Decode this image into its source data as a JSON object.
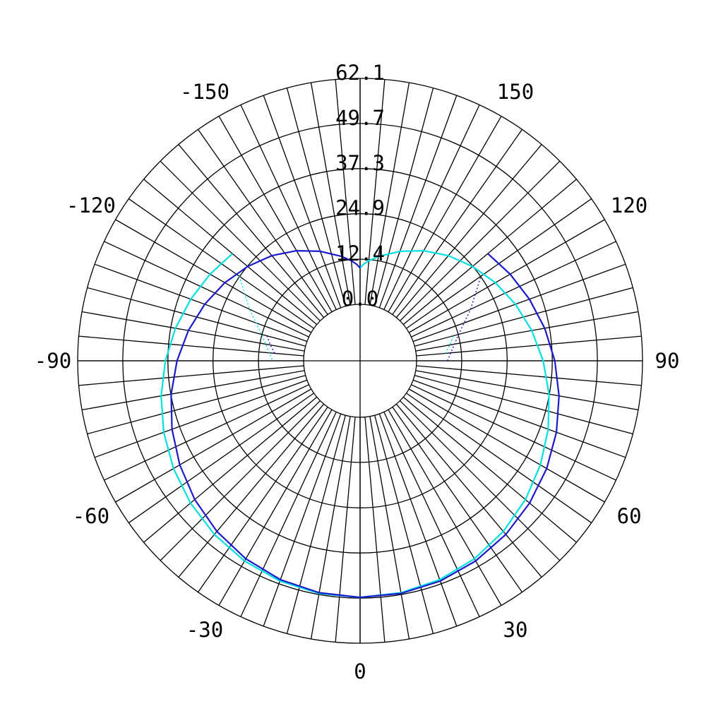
{
  "chart_data": {
    "type": "polar",
    "title": "",
    "radial_tick_labels": [
      "0.0",
      "12.4",
      "24.9",
      "37.3",
      "49.7",
      "62.1"
    ],
    "radial_range": [
      0,
      62.1
    ],
    "radial_offset": 0,
    "angle_tick_labels": [
      "0",
      "30",
      "60",
      "90",
      "120",
      "150",
      "-150",
      "-120",
      "-90",
      "-60",
      "-30"
    ],
    "angle_tick_values": [
      0,
      30,
      60,
      90,
      120,
      150,
      -150,
      -120,
      -90,
      -60,
      -30
    ],
    "angle_zero": "bottom",
    "angle_direction": "counterclockwise-to-right",
    "spoke_step_deg": 5,
    "grid": true,
    "series": [
      {
        "color": "#00e0e0",
        "angles": [
          -130,
          -120,
          -110,
          -100,
          -90,
          -80,
          -70,
          -60,
          -50,
          -40,
          -30,
          -20,
          -10,
          0,
          10,
          20,
          30,
          40,
          50,
          60,
          70,
          80,
          90,
          100,
          110,
          120,
          130,
          140,
          150,
          160,
          170,
          175,
          178,
          180
        ],
        "values": [
          30.3,
          32.1,
          34.0,
          36.0,
          38.0,
          40.0,
          41.9,
          43.7,
          45.3,
          46.8,
          48.0,
          48.9,
          49.4,
          49.5,
          49.2,
          48.5,
          47.3,
          45.7,
          43.8,
          41.7,
          39.5,
          37.2,
          34.8,
          32.4,
          29.9,
          27.4,
          24.8,
          22.2,
          19.4,
          16.5,
          13.6,
          12.1,
          11.0,
          10.0
        ],
        "dotted": [
          {
            "angles": [
              -125,
              -115,
              -105,
              -95,
              -90
            ],
            "values": [
              25.0,
              18.0,
              12.5,
              9.5,
              8.5
            ]
          },
          {
            "angles": [
              95,
              100,
              105
            ],
            "values": [
              8.0,
              9.5,
              11.0
            ]
          }
        ]
      },
      {
        "color": "#1a1acc",
        "angles": [
          -180,
          -178,
          -175,
          -170,
          -160,
          -150,
          -140,
          -130,
          -120,
          -110,
          -100,
          -90,
          -80,
          -70,
          -60,
          -50,
          -40,
          -30,
          -20,
          -10,
          0,
          10,
          20,
          30,
          40,
          50,
          60,
          70,
          80,
          90,
          100,
          110,
          120,
          130
        ],
        "values": [
          10.0,
          11.0,
          12.1,
          13.6,
          16.5,
          19.4,
          22.2,
          24.8,
          27.4,
          29.9,
          32.4,
          34.8,
          37.2,
          39.5,
          41.7,
          43.8,
          45.7,
          47.3,
          48.5,
          49.2,
          49.5,
          49.4,
          48.9,
          48.0,
          46.8,
          45.3,
          43.7,
          41.9,
          40.0,
          38.0,
          36.0,
          34.0,
          32.1,
          30.3
        ],
        "dotted": [
          {
            "angles": [
              90,
              95,
              105,
              115,
              125
            ],
            "values": [
              8.5,
              9.5,
              12.5,
              18.0,
              25.0
            ]
          },
          {
            "angles": [
              -105,
              -100,
              -95
            ],
            "values": [
              11.0,
              9.5,
              8.0
            ]
          }
        ]
      }
    ]
  }
}
